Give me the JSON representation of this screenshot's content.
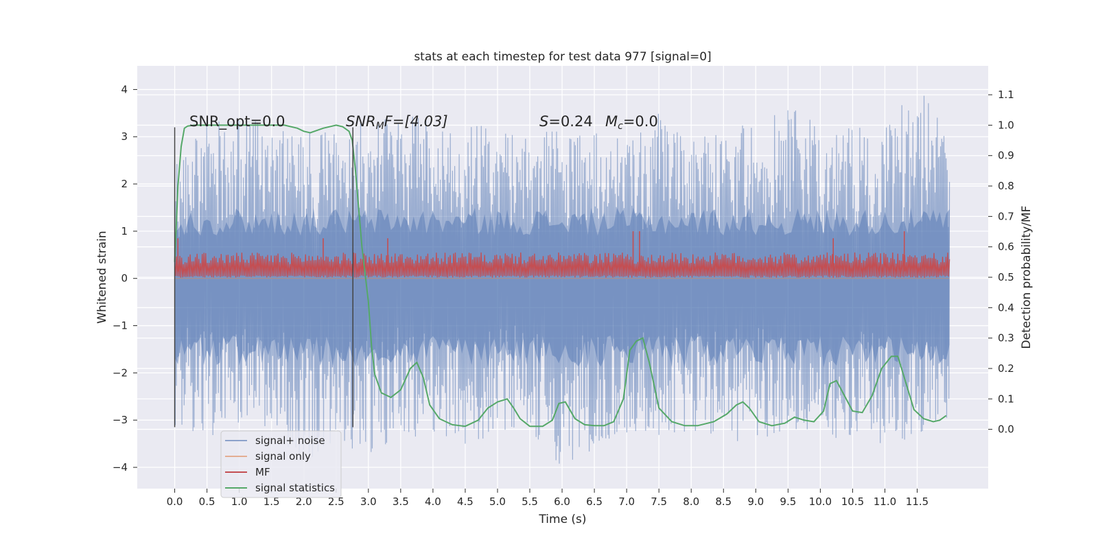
{
  "chart_data": {
    "type": "line",
    "title": "stats at each timestep for test data 977 [signal=0]",
    "xlabel": "Time (s)",
    "ylabel": "Whitened strain",
    "ylabel_right": "Detection probability/MF",
    "xlim": [
      -0.58,
      12.6
    ],
    "ylim": [
      -4.45,
      4.5
    ],
    "ylim_right": [
      -0.195,
      1.195
    ],
    "x_ticks": [
      0.0,
      0.5,
      1.0,
      1.5,
      2.0,
      2.5,
      3.0,
      3.5,
      4.0,
      4.5,
      5.0,
      5.5,
      6.0,
      6.5,
      7.0,
      7.5,
      8.0,
      8.5,
      9.0,
      9.5,
      10.0,
      10.5,
      11.0,
      11.5
    ],
    "x_tick_labels": [
      "0.0",
      "0.5",
      "1.0",
      "1.5",
      "2.0",
      "2.5",
      "3.0",
      "3.5",
      "4.0",
      "4.5",
      "5.0",
      "5.5",
      "6.0",
      "6.5",
      "7.0",
      "7.5",
      "8.0",
      "8.5",
      "9.0",
      "9.5",
      "10.0",
      "10.5",
      "11.0",
      "11.5"
    ],
    "y_ticks": [
      -4,
      -3,
      -2,
      -1,
      0,
      1,
      2,
      3,
      4
    ],
    "y_tick_labels": [
      "−4",
      "−3",
      "−2",
      "−1",
      "0",
      "1",
      "2",
      "3",
      "4"
    ],
    "y_right_ticks": [
      0.0,
      0.1,
      0.2,
      0.3,
      0.4,
      0.5,
      0.6,
      0.7,
      0.8,
      0.9,
      1.0,
      1.1
    ],
    "y_right_tick_labels": [
      "0.0",
      "0.1",
      "0.2",
      "0.3",
      "0.4",
      "0.5",
      "0.6",
      "0.7",
      "0.8",
      "0.9",
      "1.0",
      "1.1"
    ],
    "grid": true,
    "legend_position": "lower-left",
    "annotations": {
      "snr_opt": "SNR_opt=0.0",
      "snr_mf_prefix": "SNR",
      "snr_mf_sub": "M",
      "snr_mf_suffix": "F=[4.03]",
      "s_label": "S",
      "s_value": "=0.24",
      "mc_label": "M",
      "mc_sub": "c",
      "mc_value": "=0.0"
    },
    "vlines": [
      0.0,
      2.76
    ],
    "vline_range": [
      -3.15,
      3.2
    ],
    "series": [
      {
        "name": "signal+ noise",
        "color": "#4c72b0",
        "axis": "left",
        "kind": "noise",
        "t_range": [
          0.0,
          12.0
        ],
        "envelope": {
          "x": [
            0.0,
            0.5,
            1.0,
            1.5,
            2.0,
            2.5,
            3.0,
            3.5,
            4.0,
            4.5,
            5.0,
            5.5,
            6.0,
            6.5,
            7.0,
            7.5,
            8.0,
            8.5,
            9.0,
            9.5,
            10.0,
            10.5,
            11.0,
            11.5,
            12.0
          ],
          "upper": [
            2.6,
            3.3,
            3.35,
            3.3,
            3.3,
            3.4,
            3.3,
            3.5,
            3.3,
            3.2,
            3.3,
            3.0,
            3.2,
            3.1,
            3.2,
            3.5,
            3.0,
            3.2,
            3.3,
            3.7,
            3.2,
            3.2,
            3.2,
            4.1,
            3.0
          ],
          "lower": [
            -3.1,
            -3.4,
            -3.3,
            -3.3,
            -3.9,
            -3.5,
            -3.7,
            -3.4,
            -3.3,
            -3.5,
            -3.3,
            -3.2,
            -4.0,
            -3.6,
            -3.3,
            -3.4,
            -3.2,
            -3.4,
            -3.5,
            -3.2,
            -3.4,
            -3.4,
            -3.5,
            -3.4,
            -3.1
          ]
        }
      },
      {
        "name": "signal only",
        "color": "#dd8452",
        "axis": "left",
        "kind": "flat",
        "values": [
          0.0
        ]
      },
      {
        "name": "MF",
        "color": "#c44e52",
        "axis": "left",
        "kind": "band",
        "t_range": [
          0.0,
          12.0
        ],
        "band": {
          "base_lower": 0.05,
          "base_upper": 0.55,
          "spikes": [
            [
              0.05,
              0.85
            ],
            [
              2.3,
              0.85
            ],
            [
              3.3,
              0.85
            ],
            [
              7.1,
              1.0
            ],
            [
              7.2,
              1.0
            ],
            [
              10.2,
              0.85
            ],
            [
              11.3,
              1.0
            ]
          ]
        }
      },
      {
        "name": "signal statistics",
        "color": "#55a868",
        "axis": "right",
        "kind": "line",
        "x": [
          0.0,
          0.05,
          0.1,
          0.15,
          0.2,
          0.3,
          0.5,
          0.8,
          1.0,
          1.4,
          1.7,
          1.9,
          2.0,
          2.1,
          2.3,
          2.5,
          2.6,
          2.7,
          2.75,
          2.8,
          2.9,
          3.0,
          3.05,
          3.1,
          3.2,
          3.35,
          3.5,
          3.65,
          3.75,
          3.85,
          3.95,
          4.1,
          4.3,
          4.5,
          4.7,
          4.85,
          5.0,
          5.15,
          5.25,
          5.35,
          5.5,
          5.7,
          5.85,
          5.95,
          6.05,
          6.2,
          6.35,
          6.5,
          6.65,
          6.8,
          6.95,
          7.05,
          7.15,
          7.25,
          7.35,
          7.5,
          7.7,
          7.9,
          8.1,
          8.35,
          8.55,
          8.7,
          8.8,
          8.9,
          9.05,
          9.25,
          9.45,
          9.6,
          9.75,
          9.9,
          10.05,
          10.15,
          10.25,
          10.35,
          10.5,
          10.65,
          10.8,
          10.95,
          11.1,
          11.2,
          11.3,
          11.45,
          11.6,
          11.75,
          11.85,
          11.95
        ],
        "y": [
          0.55,
          0.8,
          0.93,
          0.99,
          0.997,
          1.0,
          1.0,
          1.0,
          1.0,
          1.0,
          1.0,
          0.99,
          0.98,
          0.975,
          0.99,
          1.0,
          0.995,
          0.98,
          0.95,
          0.85,
          0.6,
          0.42,
          0.27,
          0.18,
          0.12,
          0.105,
          0.13,
          0.2,
          0.22,
          0.17,
          0.08,
          0.035,
          0.015,
          0.01,
          0.03,
          0.07,
          0.09,
          0.1,
          0.07,
          0.035,
          0.01,
          0.01,
          0.03,
          0.085,
          0.09,
          0.035,
          0.015,
          0.012,
          0.012,
          0.025,
          0.1,
          0.26,
          0.29,
          0.3,
          0.22,
          0.07,
          0.025,
          0.012,
          0.012,
          0.025,
          0.05,
          0.08,
          0.09,
          0.07,
          0.025,
          0.012,
          0.02,
          0.04,
          0.03,
          0.025,
          0.06,
          0.15,
          0.16,
          0.12,
          0.06,
          0.055,
          0.11,
          0.2,
          0.24,
          0.24,
          0.17,
          0.065,
          0.035,
          0.025,
          0.03,
          0.045
        ]
      }
    ]
  }
}
